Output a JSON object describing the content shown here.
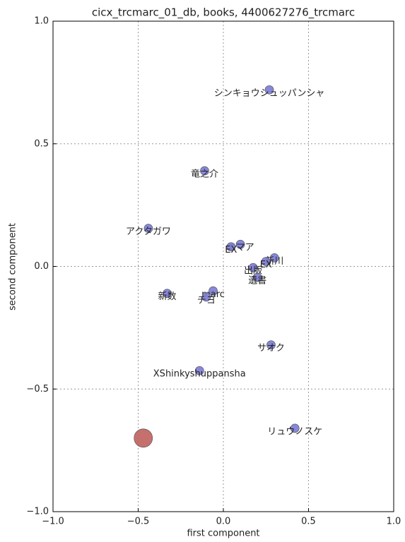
{
  "chart_data": {
    "type": "scatter",
    "title": "cicx_trcmarc_01_db, books, 4400627276_trcmarc",
    "x_label": "first component",
    "y_label": "second component",
    "xlim": [
      -1.0,
      1.0
    ],
    "ylim": [
      -1.0,
      1.0
    ],
    "xticks": [
      {
        "value": -1.0,
        "label": "−1.0"
      },
      {
        "value": -0.5,
        "label": "−0.5"
      },
      {
        "value": 0,
        "label": "0.0"
      },
      {
        "value": 0.5,
        "label": "0.5"
      },
      {
        "value": 1.0,
        "label": "1.0"
      }
    ],
    "yticks": [
      {
        "value": -1.0,
        "label": "−1.0"
      },
      {
        "value": -0.5,
        "label": "−0.5"
      },
      {
        "value": 0,
        "label": "0.0"
      },
      {
        "value": 0.5,
        "label": "0.5"
      },
      {
        "value": 1.0,
        "label": "1.0"
      }
    ],
    "grid": true,
    "series": [
      {
        "color": "#7b7bd6",
        "size": 6,
        "x": [
          0.27,
          -0.11,
          -0.44,
          0.1,
          0.045,
          0.3,
          0.25,
          0.175,
          0.2,
          -0.06,
          -0.33,
          -0.1,
          0.28,
          -0.14,
          0.42
        ],
        "values": [
          0.72,
          0.39,
          0.155,
          0.09,
          0.08,
          0.035,
          0.02,
          -0.005,
          -0.045,
          -0.1,
          -0.11,
          -0.125,
          -0.32,
          -0.425,
          -0.66
        ],
        "labels": [
          "シンキョウシュッパンシャ",
          "竜之介",
          "アクタガワ",
          "エマア",
          "EX",
          "新川",
          "EX",
          "出版",
          "遺書",
          "marc",
          "新数",
          "チヨ",
          "サオク",
          "XShinkyshuppansha",
          "リュウノスケ"
        ]
      },
      {
        "color": "#c0605e",
        "size": 13,
        "x": [
          -0.47
        ],
        "values": [
          -0.7
        ]
      }
    ]
  }
}
